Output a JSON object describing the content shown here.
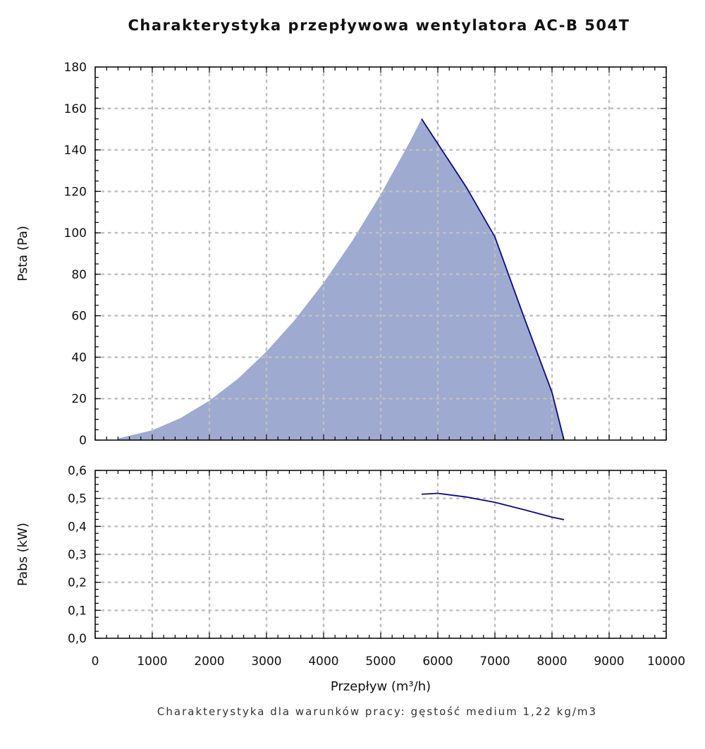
{
  "chart_data": [
    {
      "type": "area",
      "title": "Charakterystyka przepływowa wentylatora AC-B 504T",
      "xlabel": "Przepływ (m³/h)",
      "ylabel": "Psta (Pa)",
      "xlim": [
        0,
        10000
      ],
      "ylim": [
        0,
        180
      ],
      "yticks": [
        "0",
        "20",
        "40",
        "60",
        "80",
        "100",
        "120",
        "140",
        "160",
        "180"
      ],
      "grid": true,
      "series": [
        {
          "name": "working-area-lower",
          "x": [
            400,
            1000,
            1500,
            2000,
            2500,
            3000,
            3500,
            4000,
            4500,
            5000,
            5500,
            5716
          ],
          "y": [
            0.8,
            4.7,
            10.7,
            19,
            29.6,
            42.7,
            58.1,
            75.9,
            96,
            118.5,
            143.4,
            155
          ]
        },
        {
          "name": "fan-curve",
          "x": [
            5716,
            6000,
            6500,
            7000,
            7500,
            8000,
            8210
          ],
          "y": [
            155,
            143,
            122,
            98,
            60,
            23,
            0
          ]
        }
      ]
    },
    {
      "type": "line",
      "xlabel": "Przepływ (m³/h)",
      "ylabel": "Pabs (kW)",
      "xlim": [
        0,
        10000
      ],
      "ylim": [
        0,
        0.6
      ],
      "yticks": [
        "0,0",
        "0,1",
        "0,2",
        "0,3",
        "0,4",
        "0,5",
        "0,6"
      ],
      "xticks": [
        "0",
        "1000",
        "2000",
        "3000",
        "4000",
        "5000",
        "6000",
        "7000",
        "8000",
        "9000",
        "10000"
      ],
      "grid": true,
      "series": [
        {
          "name": "power",
          "x": [
            5716,
            6000,
            6500,
            7000,
            7500,
            8000,
            8210
          ],
          "y": [
            0.515,
            0.518,
            0.505,
            0.486,
            0.46,
            0.433,
            0.424
          ]
        }
      ]
    }
  ],
  "note": "Charakterystyka dla warunków pracy: gęstość medium 1,22 kg/m3",
  "colors": {
    "fill": "#9eaad0",
    "line": "#0a0a80",
    "grid": "#c0c0c0"
  }
}
